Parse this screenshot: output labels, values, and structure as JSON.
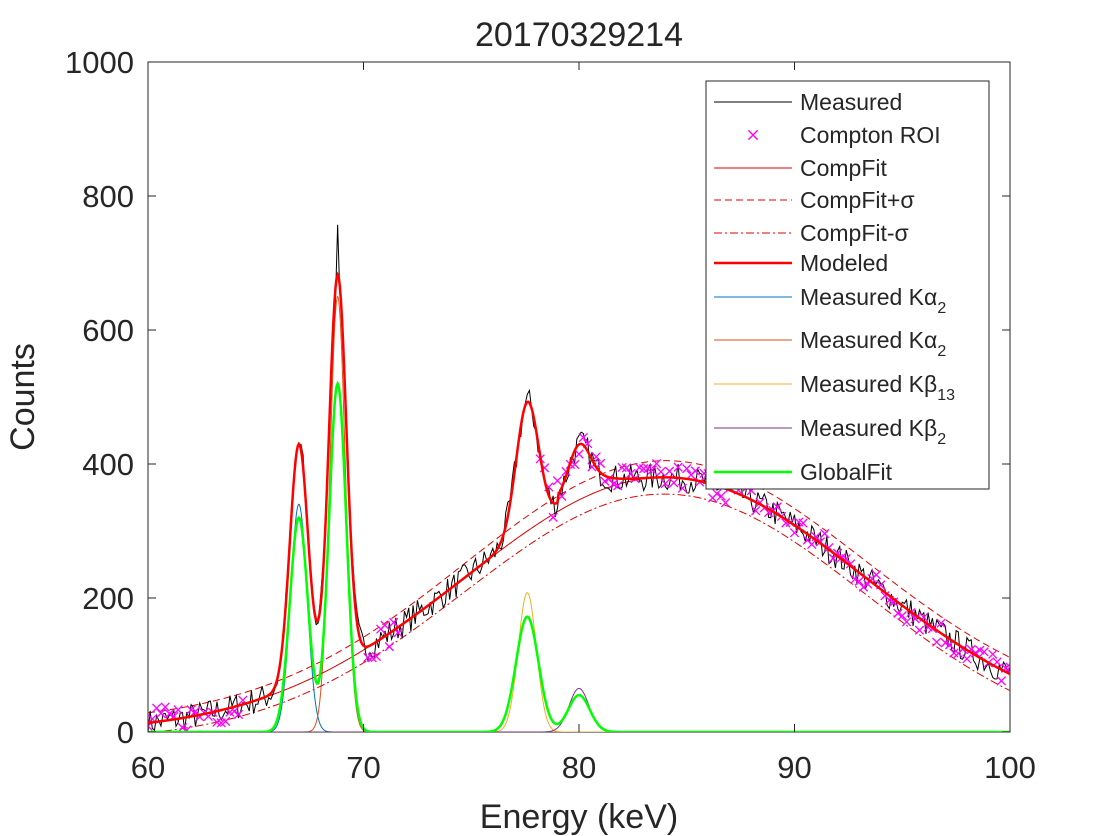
{
  "chart_data": {
    "type": "line",
    "title": "20170329214",
    "xlabel": "Energy (keV)",
    "ylabel": "Counts",
    "xlim": [
      60,
      100
    ],
    "ylim": [
      0,
      1000
    ],
    "xticks": [
      60,
      70,
      80,
      90,
      100
    ],
    "yticks": [
      0,
      200,
      400,
      600,
      800,
      1000
    ],
    "grid": false,
    "legend_position": "top-right",
    "legend": [
      {
        "label": "Measured",
        "sub": "",
        "style": "line",
        "color": "#000000",
        "width": 1,
        "dash": ""
      },
      {
        "label": "Compton ROI",
        "sub": "",
        "style": "marker",
        "color": "#ff00ff",
        "width": 1.2,
        "dash": ""
      },
      {
        "label": "CompFit",
        "sub": "",
        "style": "line",
        "color": "#e00000",
        "width": 1,
        "dash": ""
      },
      {
        "label": "CompFit+σ",
        "sub": "",
        "style": "line",
        "color": "#e00000",
        "width": 1,
        "dash": "7,4"
      },
      {
        "label": "CompFit-σ",
        "sub": "",
        "style": "line",
        "color": "#e00000",
        "width": 1,
        "dash": "8,3,2,3"
      },
      {
        "label": "Modeled",
        "sub": "",
        "style": "line",
        "color": "#ff0000",
        "width": 2.5,
        "dash": ""
      },
      {
        "label": "Measured Kα",
        "sub": "2",
        "style": "line",
        "color": "#0072bd",
        "width": 1,
        "dash": ""
      },
      {
        "label": "Measured Kα",
        "sub": "2",
        "style": "line",
        "color": "#d95319",
        "width": 1,
        "dash": ""
      },
      {
        "label": "Measured Kβ",
        "sub": "13",
        "style": "line",
        "color": "#edb120",
        "width": 1,
        "dash": ""
      },
      {
        "label": "Measured Kβ",
        "sub": "2",
        "style": "line",
        "color": "#7e2f8e",
        "width": 1,
        "dash": ""
      },
      {
        "label": "GlobalFit",
        "sub": "",
        "style": "line",
        "color": "#00ff00",
        "width": 2.5,
        "dash": ""
      }
    ],
    "compton_fit": {
      "peak_energy": 84,
      "peak_counts": 380,
      "sigma_band": 25
    },
    "peaks": [
      {
        "name": "Measured Kα2",
        "center": 67.0,
        "measured_height": 340,
        "fit_height": 320
      },
      {
        "name": "Measured Kα2",
        "center": 68.8,
        "measured_height": 650,
        "fit_height": 520
      },
      {
        "name": "Measured Kβ13",
        "center": 77.6,
        "measured_height": 208,
        "fit_height": 172
      },
      {
        "name": "Measured Kβ2",
        "center": 80.0,
        "measured_height": 65,
        "fit_height": 55
      }
    ],
    "measured_annotations": {
      "max_counts": 757,
      "max_energy": 68.8
    }
  }
}
